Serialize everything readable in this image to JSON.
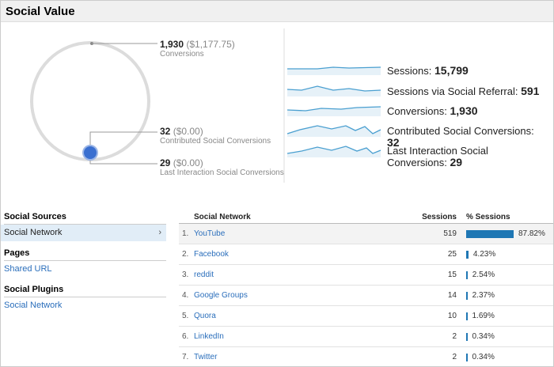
{
  "header": {
    "title": "Social Value"
  },
  "summary": [
    {
      "value": "1,930",
      "detail": "($1,177.75)",
      "label": "Conversions"
    },
    {
      "value": "32",
      "detail": "($0.00)",
      "label": "Contributed Social Conversions"
    },
    {
      "value": "29",
      "detail": "($0.00)",
      "label": "Last Interaction Social Conversions"
    }
  ],
  "metrics": [
    {
      "label": "Sessions:",
      "value": "15,799"
    },
    {
      "label": "Sessions via Social Referral:",
      "value": "591"
    },
    {
      "label": "Conversions:",
      "value": "1,930"
    },
    {
      "label": "Contributed Social Conversions:",
      "value": "32"
    },
    {
      "label": "Last Interaction Social Conversions:",
      "value": "29"
    }
  ],
  "sidebar": {
    "sections": [
      {
        "title": "Social Sources",
        "items": [
          "Social Network"
        ]
      },
      {
        "title": "Pages",
        "items": [
          "Shared URL"
        ]
      },
      {
        "title": "Social Plugins",
        "items": [
          "Social Network"
        ]
      }
    ]
  },
  "table": {
    "columns": [
      "Social Network",
      "Sessions",
      "% Sessions"
    ],
    "rows": [
      {
        "rank": "1.",
        "name": "YouTube",
        "sessions": 519,
        "share": 87.82,
        "share_label": "87.82%"
      },
      {
        "rank": "2.",
        "name": "Facebook",
        "sessions": 25,
        "share": 4.23,
        "share_label": "4.23%"
      },
      {
        "rank": "3.",
        "name": "reddit",
        "sessions": 15,
        "share": 2.54,
        "share_label": "2.54%"
      },
      {
        "rank": "4.",
        "name": "Google Groups",
        "sessions": 14,
        "share": 2.37,
        "share_label": "2.37%"
      },
      {
        "rank": "5.",
        "name": "Quora",
        "sessions": 10,
        "share": 1.69,
        "share_label": "1.69%"
      },
      {
        "rank": "6.",
        "name": "LinkedIn",
        "sessions": 2,
        "share": 0.34,
        "share_label": "0.34%"
      },
      {
        "rank": "7.",
        "name": "Twitter",
        "sessions": 2,
        "share": 0.34,
        "share_label": "0.34%"
      }
    ]
  }
}
